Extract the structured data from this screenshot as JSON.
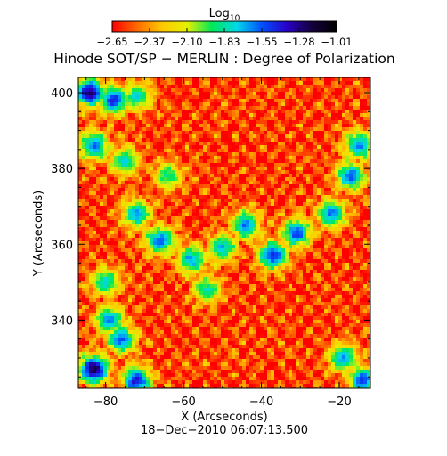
{
  "chart_data": {
    "type": "heatmap",
    "title": "Hinode SOT/SP − MERLIN : Degree of Polarization",
    "subtitle": "18−Dec−2010 06:07:13.500",
    "xlabel": "X (Arcseconds)",
    "ylabel": "Y (Arcseconds)",
    "xlim": [
      -87,
      -12
    ],
    "ylim": [
      322,
      404
    ],
    "x_ticks": [
      {
        "value": -80,
        "label": "−80"
      },
      {
        "value": -60,
        "label": "−60"
      },
      {
        "value": -40,
        "label": "−40"
      },
      {
        "value": -20,
        "label": "−20"
      }
    ],
    "y_ticks": [
      {
        "value": 340,
        "label": "340"
      },
      {
        "value": 360,
        "label": "360"
      },
      {
        "value": 380,
        "label": "380"
      },
      {
        "value": 400,
        "label": "400"
      }
    ],
    "colorbar": {
      "title_base": "Log",
      "title_subscript": "10",
      "range": [
        -2.65,
        -1.01
      ],
      "tick_labels": [
        "−2.65",
        "−2.37",
        "−2.10",
        "−1.83",
        "−1.55",
        "−1.28",
        "−1.01"
      ],
      "colormap": [
        "#ff0000",
        "#ff6a00",
        "#ffc800",
        "#e6f000",
        "#00e85a",
        "#00d8e8",
        "#0050ff",
        "#2800c8",
        "#14003c",
        "#000000"
      ]
    },
    "high_polarization_regions": [
      {
        "x": -84,
        "y": 400,
        "value": -1.25
      },
      {
        "x": -78,
        "y": 398,
        "value": -1.45
      },
      {
        "x": -72,
        "y": 399,
        "value": -1.75
      },
      {
        "x": -83,
        "y": 386,
        "value": -1.6
      },
      {
        "x": -75,
        "y": 382,
        "value": -1.75
      },
      {
        "x": -64,
        "y": 378,
        "value": -1.85
      },
      {
        "x": -72,
        "y": 368,
        "value": -1.65
      },
      {
        "x": -66,
        "y": 361,
        "value": -1.55
      },
      {
        "x": -58,
        "y": 356,
        "value": -1.65
      },
      {
        "x": -50,
        "y": 359,
        "value": -1.7
      },
      {
        "x": -44,
        "y": 365,
        "value": -1.6
      },
      {
        "x": -37,
        "y": 357,
        "value": -1.45
      },
      {
        "x": -31,
        "y": 363,
        "value": -1.5
      },
      {
        "x": -22,
        "y": 368,
        "value": -1.6
      },
      {
        "x": -17,
        "y": 378,
        "value": -1.55
      },
      {
        "x": -15,
        "y": 386,
        "value": -1.6
      },
      {
        "x": -80,
        "y": 350,
        "value": -1.75
      },
      {
        "x": -76,
        "y": 335,
        "value": -1.55
      },
      {
        "x": -83,
        "y": 327,
        "value": -1.2
      },
      {
        "x": -72,
        "y": 324,
        "value": -1.4
      },
      {
        "x": -79,
        "y": 340,
        "value": -1.6
      },
      {
        "x": -54,
        "y": 348,
        "value": -1.8
      },
      {
        "x": -19,
        "y": 330,
        "value": -1.65
      },
      {
        "x": -14,
        "y": 324,
        "value": -1.5
      }
    ]
  }
}
